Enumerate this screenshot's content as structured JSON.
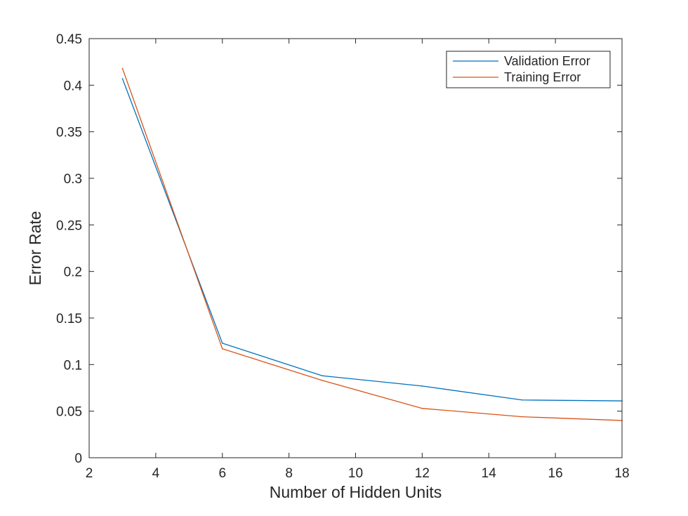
{
  "chart_data": {
    "type": "line",
    "title": "",
    "xlabel": "Number of Hidden Units",
    "ylabel": "Error Rate",
    "xlim": [
      2,
      18
    ],
    "ylim": [
      0,
      0.45
    ],
    "xticks": [
      2,
      4,
      6,
      8,
      10,
      12,
      14,
      16,
      18
    ],
    "xtick_labels": [
      "2",
      "4",
      "6",
      "8",
      "10",
      "12",
      "14",
      "16",
      "18"
    ],
    "yticks": [
      0,
      0.05,
      0.1,
      0.15,
      0.2,
      0.25,
      0.3,
      0.35,
      0.4,
      0.45
    ],
    "ytick_labels": [
      "0",
      "0.05",
      "0.1",
      "0.15",
      "0.2",
      "0.25",
      "0.3",
      "0.35",
      "0.4",
      "0.45"
    ],
    "grid": false,
    "legend_position": "top-right",
    "series": [
      {
        "name": "Validation Error",
        "color": "#0072BD",
        "x": [
          3,
          6,
          9,
          12,
          15,
          18
        ],
        "y": [
          0.407,
          0.123,
          0.088,
          0.077,
          0.062,
          0.061
        ]
      },
      {
        "name": "Training Error",
        "color": "#D95319",
        "x": [
          3,
          6,
          9,
          12,
          15,
          18
        ],
        "y": [
          0.418,
          0.117,
          0.083,
          0.053,
          0.044,
          0.04
        ]
      }
    ]
  }
}
